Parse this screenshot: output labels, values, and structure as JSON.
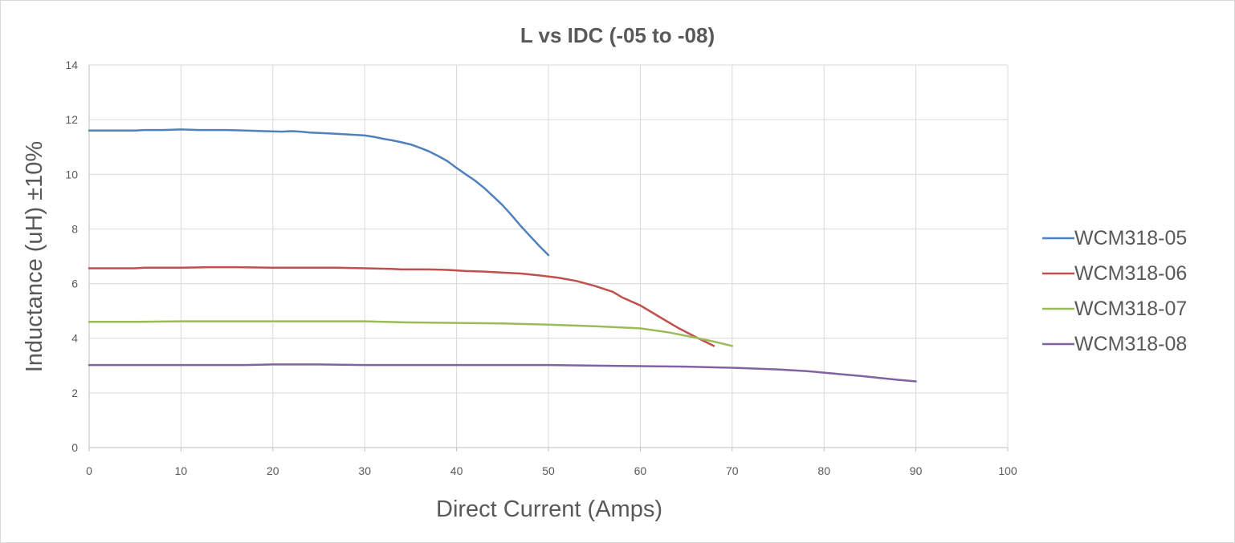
{
  "chart_data": {
    "type": "line",
    "title": "L vs IDC (-05 to -08)",
    "xlabel": "Direct Current (Amps)",
    "ylabel": "Inductance (uH) ±10%",
    "xlim": [
      0,
      100
    ],
    "ylim": [
      0,
      14
    ],
    "x_ticks": [
      0,
      10,
      20,
      30,
      40,
      50,
      60,
      70,
      80,
      90,
      100
    ],
    "y_ticks": [
      0,
      2,
      4,
      6,
      8,
      10,
      12,
      14
    ],
    "grid": "on",
    "legend_position": "right",
    "series": [
      {
        "name": "WCM318-05",
        "color": "#4f81bd",
        "x": [
          0,
          5,
          6,
          8,
          10,
          12,
          15,
          17,
          19,
          21,
          22,
          23,
          24,
          26,
          28,
          30,
          31,
          32,
          33,
          34,
          35,
          36,
          37,
          38,
          39,
          40,
          41,
          42,
          43,
          44,
          45,
          46,
          47,
          48,
          49,
          50
        ],
        "y": [
          11.6,
          11.6,
          11.62,
          11.62,
          11.64,
          11.62,
          11.62,
          11.6,
          11.58,
          11.56,
          11.58,
          11.56,
          11.53,
          11.5,
          11.46,
          11.42,
          11.37,
          11.3,
          11.24,
          11.17,
          11.09,
          10.97,
          10.84,
          10.67,
          10.48,
          10.23,
          10.0,
          9.77,
          9.5,
          9.19,
          8.87,
          8.5,
          8.1,
          7.74,
          7.38,
          7.04
        ]
      },
      {
        "name": "WCM318-06",
        "color": "#c0504d",
        "x": [
          0,
          5,
          6,
          10,
          13,
          16,
          20,
          24,
          27,
          30,
          33,
          34,
          37,
          39,
          41,
          43,
          45,
          47,
          49,
          50,
          51,
          53,
          55,
          57,
          58,
          60,
          62,
          64,
          66,
          68
        ],
        "y": [
          6.56,
          6.56,
          6.58,
          6.58,
          6.6,
          6.6,
          6.58,
          6.58,
          6.58,
          6.56,
          6.54,
          6.52,
          6.52,
          6.5,
          6.46,
          6.44,
          6.4,
          6.37,
          6.3,
          6.26,
          6.22,
          6.1,
          5.92,
          5.7,
          5.5,
          5.2,
          4.8,
          4.4,
          4.05,
          3.72
        ]
      },
      {
        "name": "WCM318-07",
        "color": "#9bbb59",
        "x": [
          0,
          5,
          10,
          20,
          30,
          35,
          40,
          45,
          50,
          55,
          60,
          63,
          66,
          68,
          70
        ],
        "y": [
          4.6,
          4.6,
          4.62,
          4.62,
          4.62,
          4.58,
          4.56,
          4.54,
          4.5,
          4.44,
          4.36,
          4.22,
          4.02,
          3.88,
          3.72
        ]
      },
      {
        "name": "WCM318-08",
        "color": "#8064a2",
        "x": [
          0,
          10,
          17,
          20,
          25,
          30,
          40,
          50,
          60,
          65,
          70,
          75,
          78,
          80,
          82,
          84,
          86,
          88,
          90
        ],
        "y": [
          3.02,
          3.02,
          3.02,
          3.04,
          3.04,
          3.02,
          3.02,
          3.02,
          2.98,
          2.96,
          2.92,
          2.86,
          2.8,
          2.74,
          2.68,
          2.62,
          2.55,
          2.48,
          2.42
        ]
      }
    ]
  }
}
